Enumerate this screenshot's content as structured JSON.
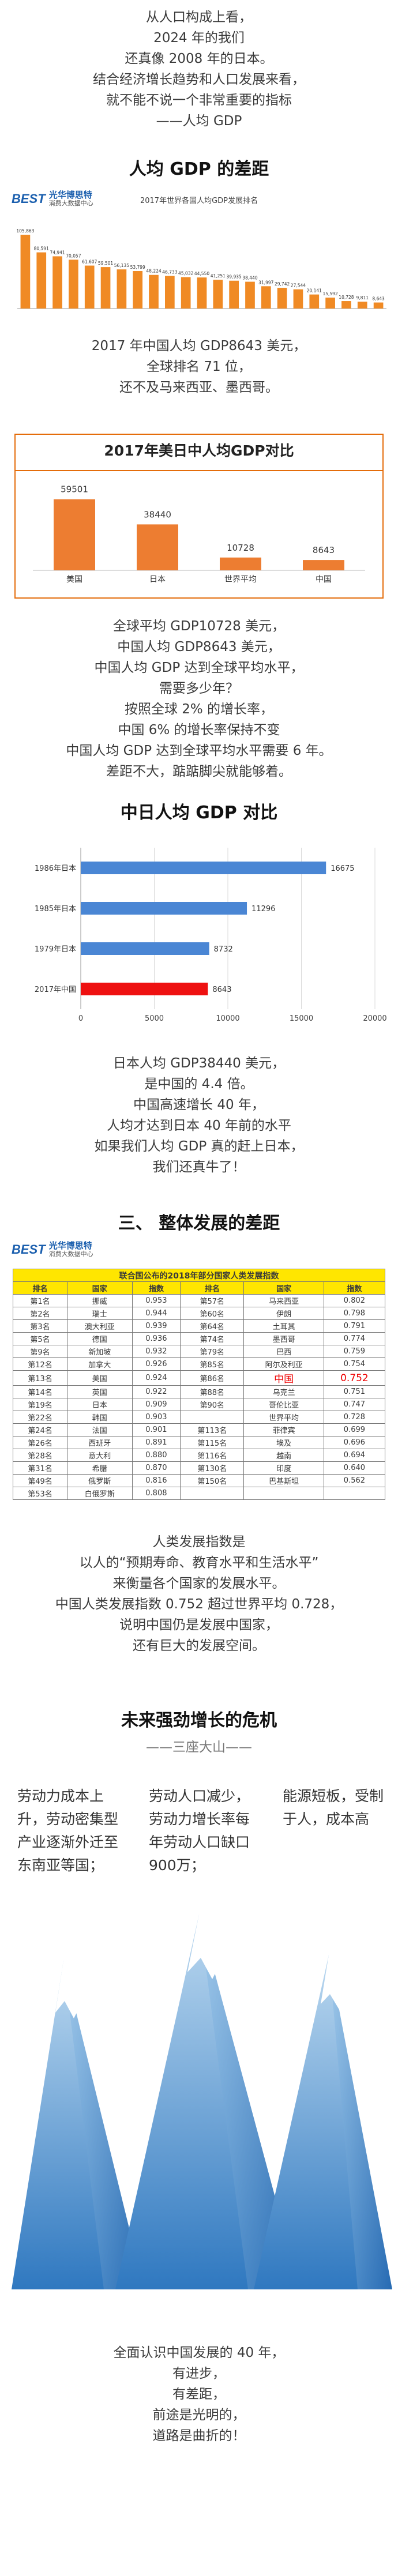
{
  "intro": [
    "从人口构成上看，",
    "2024 年的我们",
    "还真像 2008 年的日本。",
    "结合经济增长趋势和人口发展来看，",
    "就不能不说一个非常重要的指标",
    "——人均 GDP"
  ],
  "heading_1": "人均 GDP 的差距",
  "brand_mark": "BEST",
  "brand_name": "光华博思特",
  "brand_sub": "消费大数据中心",
  "chart_data": [
    {
      "type": "bar",
      "title": "2017年世界各国人均GDP发展排名",
      "categories": [
        null,
        null,
        null,
        null,
        null,
        null,
        null,
        null,
        null,
        null,
        null,
        null,
        null,
        null,
        null,
        null,
        null,
        null,
        null,
        null,
        null,
        null,
        null
      ],
      "values": [
        105863,
        80591,
        74941,
        70057,
        61607,
        59501,
        56135,
        53799,
        48224,
        46733,
        45032,
        44550,
        41251,
        39935,
        38440,
        31997,
        29742,
        27544,
        20141,
        15592,
        10728,
        9811,
        8643
      ],
      "value_labels": [
        "105,863",
        "80,591",
        "74,941",
        "70,057",
        "61,607",
        "59,501",
        "56,135",
        "53,799",
        "48,224",
        "46,733",
        "45,032",
        "44,550",
        "41,251",
        "39,935",
        "38,440",
        "31,997",
        "29,742",
        "27,544",
        "20,141",
        "15,592",
        "10,728",
        "9,811",
        "8,643"
      ],
      "color": "#f08a24",
      "ylim": [
        0,
        120000
      ]
    },
    {
      "type": "bar",
      "title": "2017年美日中人均GDP对比",
      "categories": [
        "美国",
        "日本",
        "世界平均",
        "中国"
      ],
      "values": [
        59501,
        38440,
        10728,
        8643
      ],
      "color": "#ed7d31",
      "ylim": [
        0,
        70000
      ]
    },
    {
      "type": "hbar",
      "categories": [
        "1986年日本",
        "1985年日本",
        "1979年日本",
        "2017年中国"
      ],
      "values": [
        16675,
        11296,
        8732,
        8643
      ],
      "colors": [
        "#4a86d4",
        "#4a86d4",
        "#4a86d4",
        "#ee1111"
      ],
      "xlim": [
        0,
        20000
      ],
      "xticks": [
        0,
        5000,
        10000,
        15000,
        20000
      ],
      "grid": true
    }
  ],
  "text_2": [
    "2017 年中国人均 GDP8643 美元，",
    "全球排名 71 位，",
    "还不及马来西亚、墨西哥。"
  ],
  "text_3": [
    "全球平均 GDP10728 美元，",
    "中国人均 GDP8643 美元，",
    "中国人均 GDP 达到全球平均水平，",
    "需要多少年？",
    "按照全球 2% 的增长率，",
    "中国 6% 的增长率保持不变",
    "中国人均 GDP 达到全球平均水平需要 6 年。",
    "差距不大，踮踮脚尖就能够着。"
  ],
  "heading_2": "中日人均 GDP 对比",
  "text_4": [
    "日本人均 GDP38440 美元，",
    "是中国的 4.4 倍。",
    "中国高速增长 40 年，",
    "人均才达到日本 40 年前的水平",
    "如果我们人均 GDP 真的赶上日本，",
    "我们还真牛了！"
  ],
  "heading_3": "三、 整体发展的差距",
  "table": {
    "title": "联合国公布的2018年部分国家人类发展指数",
    "header": [
      "排名",
      "国家",
      "指数",
      "排名",
      "国家",
      "指数"
    ],
    "rows": [
      [
        "第1名",
        "挪威",
        "0.953",
        "第57名",
        "马来西亚",
        "0.802"
      ],
      [
        "第2名",
        "瑞士",
        "0.944",
        "第60名",
        "伊朗",
        "0.798"
      ],
      [
        "第3名",
        "澳大利亚",
        "0.939",
        "第64名",
        "土耳其",
        "0.791"
      ],
      [
        "第5名",
        "德国",
        "0.936",
        "第74名",
        "墨西哥",
        "0.774"
      ],
      [
        "第9名",
        "新加坡",
        "0.932",
        "第79名",
        "巴西",
        "0.759"
      ],
      [
        "第12名",
        "加拿大",
        "0.926",
        "第85名",
        "阿尔及利亚",
        "0.754"
      ],
      [
        "第13名",
        "美国",
        "0.924",
        "第86名",
        "中国",
        "0.752"
      ],
      [
        "第14名",
        "英国",
        "0.922",
        "第88名",
        "乌克兰",
        "0.751"
      ],
      [
        "第19名",
        "日本",
        "0.909",
        "第90名",
        "哥伦比亚",
        "0.747"
      ],
      [
        "第22名",
        "韩国",
        "0.903",
        null,
        "世界平均",
        "0.728"
      ],
      [
        "第24名",
        "法国",
        "0.901",
        "第113名",
        "菲律宾",
        "0.699"
      ],
      [
        "第26名",
        "西班牙",
        "0.891",
        "第115名",
        "埃及",
        "0.696"
      ],
      [
        "第28名",
        "意大利",
        "0.880",
        "第116名",
        "越南",
        "0.694"
      ],
      [
        "第31名",
        "希腊",
        "0.870",
        "第130名",
        "印度",
        "0.640"
      ],
      [
        "第49名",
        "俄罗斯",
        "0.816",
        "第150名",
        "巴基斯坦",
        "0.562"
      ],
      [
        "第53名",
        "白俄罗斯",
        "0.808",
        null,
        null,
        null
      ]
    ]
  },
  "text_5": [
    "人类发展指数是",
    "以人的“预期寿命、教育水平和生活水平”",
    "来衡量各个国家的发展水平。",
    "中国人类发展指数 0.752 超过世界平均 0.728，",
    "说明中国仍是发展中国家，",
    "还有巨大的发展空间。"
  ],
  "heading_4": "未来强劲增长的危机",
  "subheading_4": "——三座大山——",
  "mountains": [
    "劳动力成本上升，劳动密集型产业逐渐外迁至东南亚等国；",
    "劳动人口减少，劳动力增长率每年劳动人口缺口900万；",
    "能源短板，受制于人，成本高"
  ],
  "outro": [
    "全面认识中国发展的 40 年，",
    "有进步，",
    "有差距，",
    "前途是光明的，",
    "道路是曲折的！"
  ]
}
